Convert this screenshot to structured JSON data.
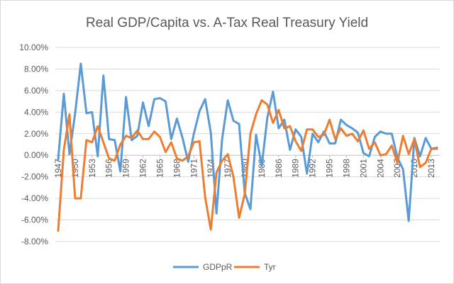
{
  "chart_data": {
    "type": "line",
    "title": "Real GDP/Capita vs. A-Tax Real Treasury Yield",
    "xlabel": "",
    "ylabel": "",
    "ylim": [
      -0.08,
      0.1
    ],
    "y_ticks": [
      "10.00%",
      "8.00%",
      "6.00%",
      "4.00%",
      "2.00%",
      "0.00%",
      "-2.00%",
      "-4.00%",
      "-6.00%",
      "-8.00%"
    ],
    "x_tick_labels": [
      "1947",
      "1950",
      "1953",
      "1956",
      "1959",
      "1962",
      "1965",
      "1968",
      "1971",
      "1974",
      "1977",
      "1980",
      "1983",
      "1986",
      "1989",
      "1992",
      "1995",
      "1998",
      "2001",
      "2004",
      "2007",
      "2010",
      "2013"
    ],
    "grid": true,
    "legend_position": "bottom",
    "x": [
      1947,
      1948,
      1949,
      1950,
      1951,
      1952,
      1953,
      1954,
      1955,
      1956,
      1957,
      1958,
      1959,
      1960,
      1961,
      1962,
      1963,
      1964,
      1965,
      1966,
      1967,
      1968,
      1969,
      1970,
      1971,
      1972,
      1973,
      1974,
      1975,
      1976,
      1977,
      1978,
      1979,
      1980,
      1981,
      1982,
      1983,
      1984,
      1985,
      1986,
      1987,
      1988,
      1989,
      1990,
      1991,
      1992,
      1993,
      1994,
      1995,
      1996,
      1997,
      1998,
      1999,
      2000,
      2001,
      2002,
      2003,
      2004,
      2005,
      2006,
      2007,
      2008,
      2009,
      2010,
      2011,
      2012,
      2013,
      2014
    ],
    "series": [
      {
        "name": "GDPpR",
        "color": "#5B9BD5",
        "values": [
          -0.004,
          0.057,
          0.001,
          0.039,
          0.085,
          0.039,
          0.04,
          -0.001,
          0.074,
          0.015,
          0.014,
          -0.015,
          0.054,
          0.014,
          0.018,
          0.049,
          0.027,
          0.052,
          0.053,
          0.05,
          0.015,
          0.034,
          0.016,
          -0.006,
          0.02,
          0.041,
          0.052,
          0.021,
          -0.054,
          0.015,
          0.051,
          0.032,
          0.029,
          -0.035,
          -0.05,
          0.019,
          -0.01,
          0.035,
          0.059,
          0.025,
          0.033,
          0.005,
          0.024,
          0.017,
          -0.017,
          0.02,
          0.012,
          0.022,
          0.011,
          0.011,
          0.033,
          0.028,
          0.025,
          0.021,
          0.002,
          -0.001,
          0.017,
          0.022,
          0.02,
          0.02,
          -0.002,
          -0.013,
          -0.061,
          0.016,
          -0.001,
          0.016,
          0.006,
          0.007
        ]
      },
      {
        "name": "Tyr",
        "color": "#ED7D31",
        "values": [
          -0.07,
          0.005,
          0.038,
          -0.04,
          -0.04,
          0.014,
          0.012,
          0.027,
          0.012,
          -0.003,
          -0.005,
          0.01,
          0.018,
          0.016,
          0.023,
          0.015,
          0.015,
          0.022,
          0.017,
          0.003,
          0.012,
          -0.003,
          -0.005,
          -0.001,
          0.012,
          0.013,
          -0.039,
          -0.069,
          -0.016,
          -0.005,
          0.001,
          -0.02,
          -0.058,
          -0.036,
          0.02,
          0.038,
          0.051,
          0.047,
          0.03,
          0.042,
          0.025,
          0.027,
          0.013,
          0.004,
          0.024,
          0.024,
          0.017,
          0.019,
          0.033,
          0.015,
          0.025,
          0.018,
          0.02,
          0.013,
          0.023,
          0.006,
          0.012,
          0.0,
          0.001,
          0.009,
          -0.007,
          0.018,
          0.001,
          0.015,
          -0.011,
          -0.007,
          0.006,
          0.006
        ]
      }
    ]
  }
}
